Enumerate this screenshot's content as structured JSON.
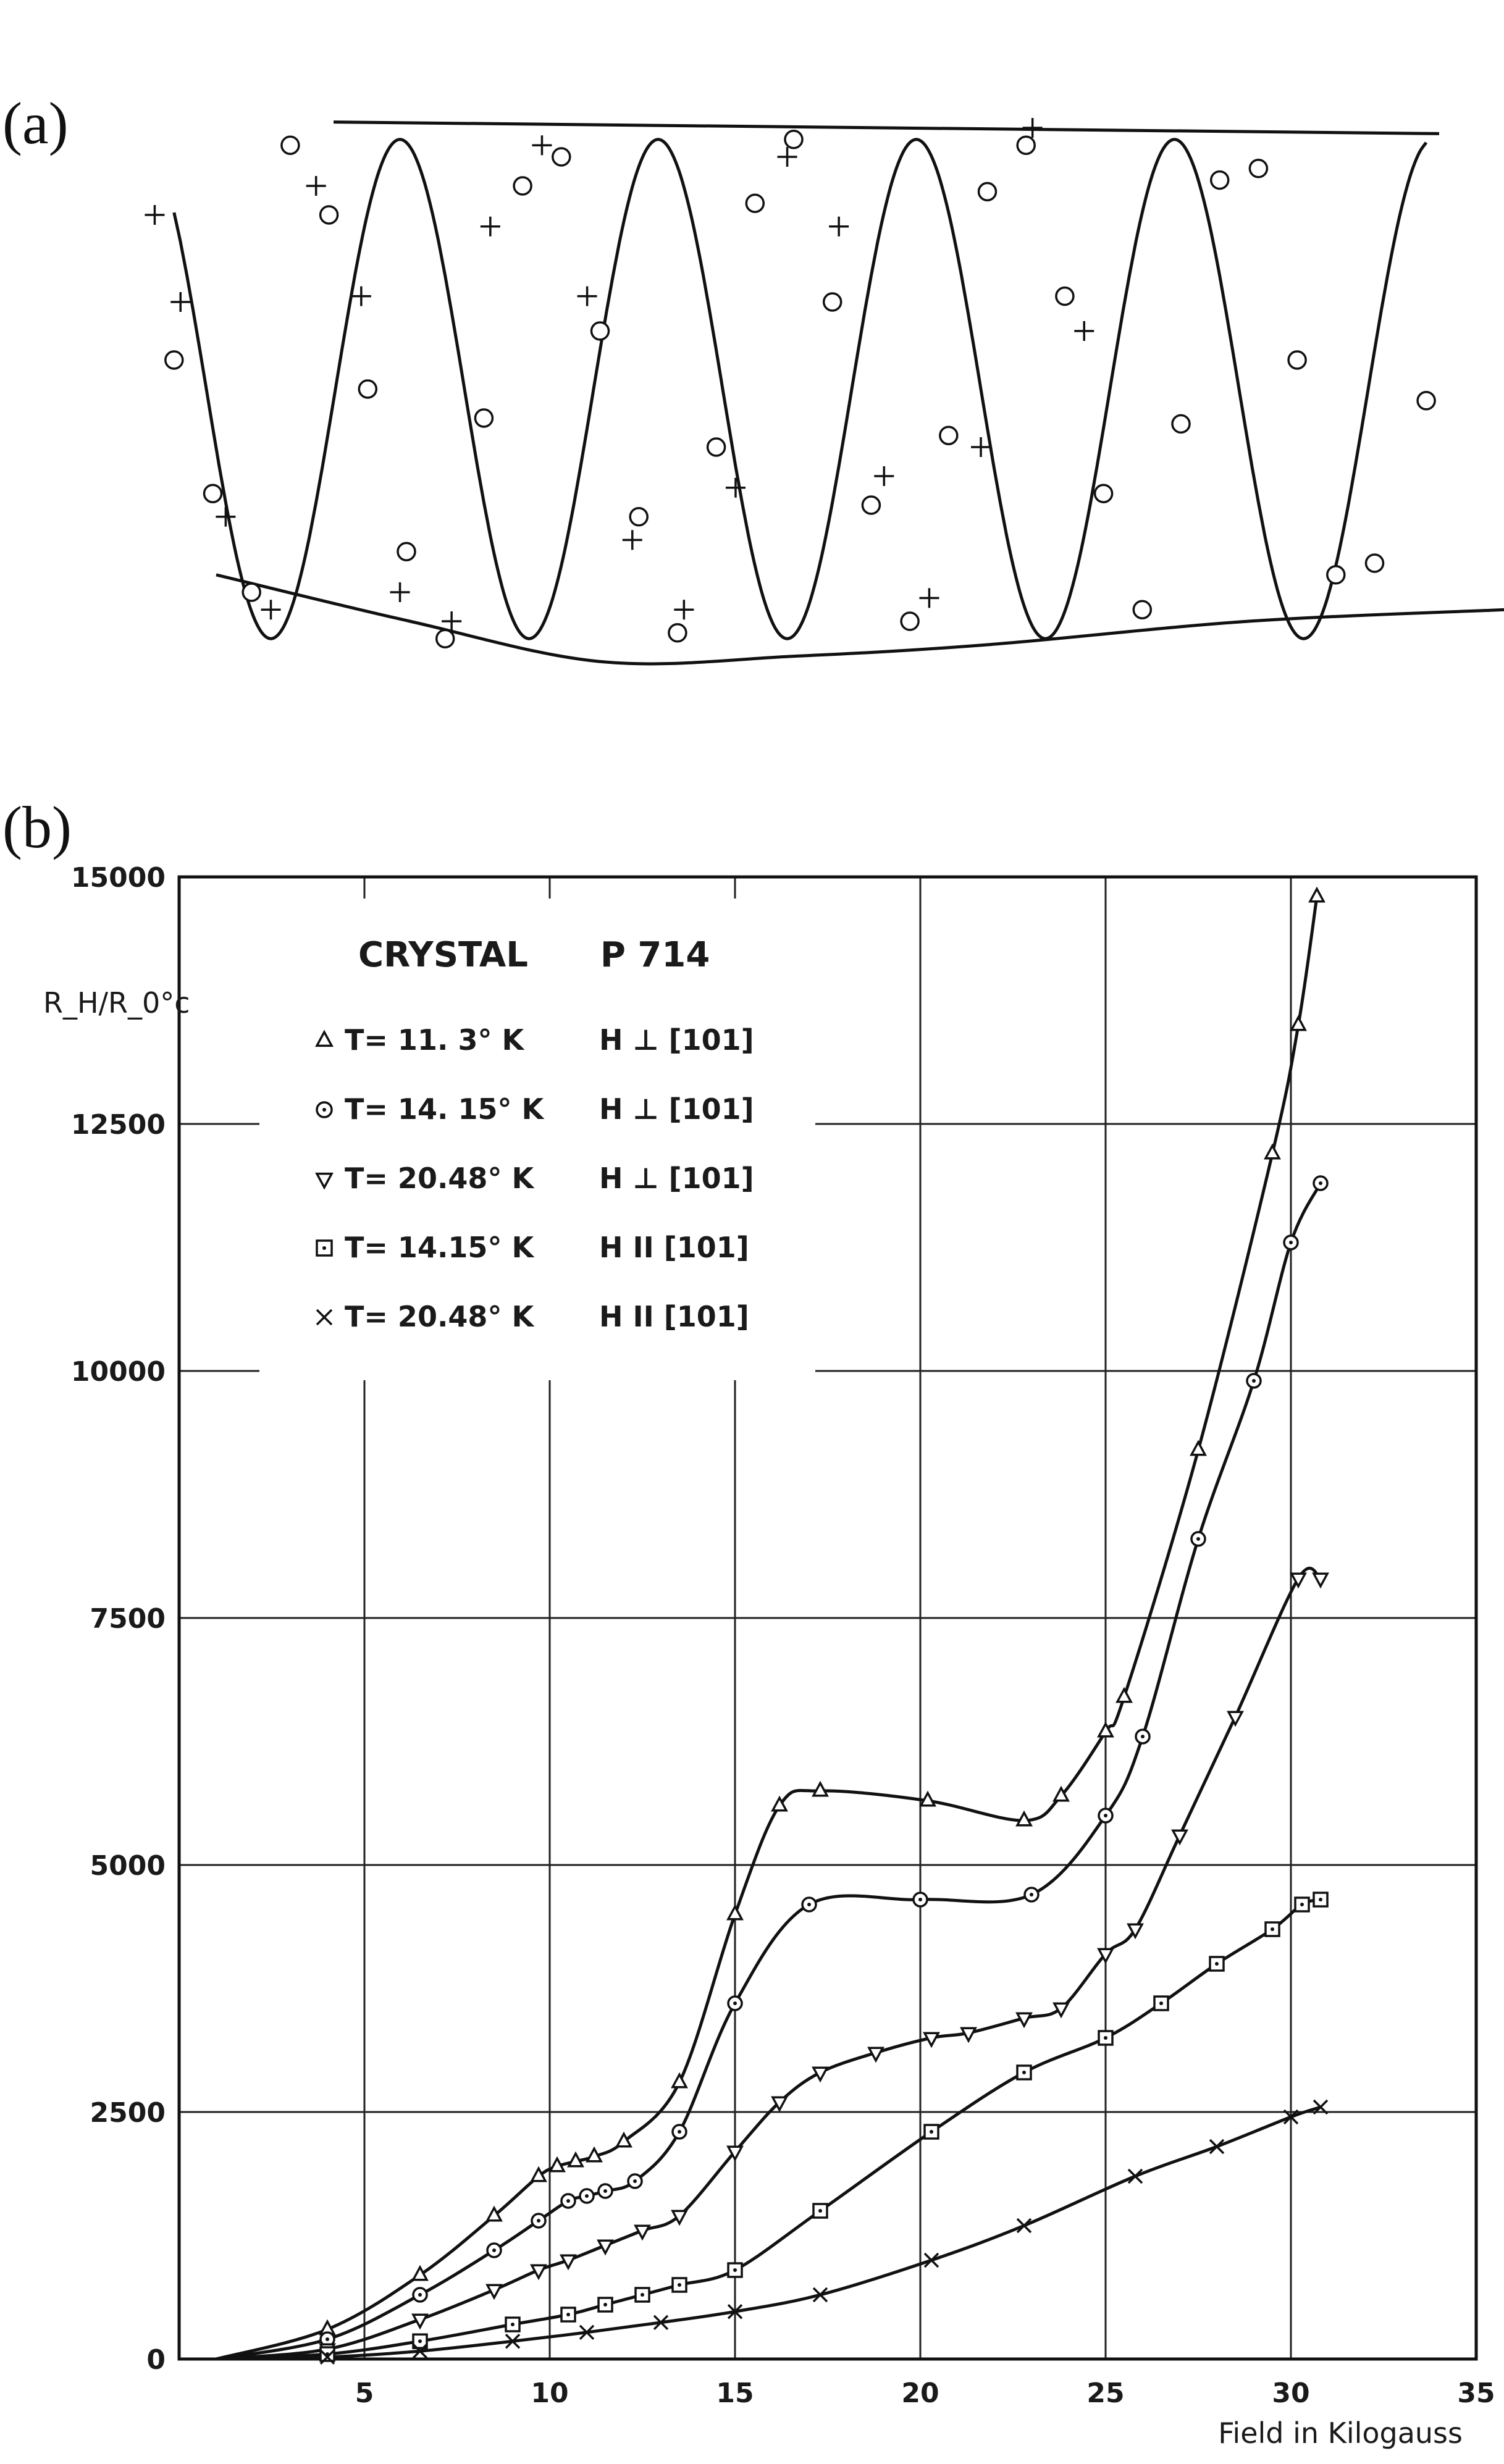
{
  "panel_a": {
    "label": "(a)"
  },
  "panel_b": {
    "label": "(b)"
  },
  "chart_data": [
    {
      "type": "scatter",
      "panel": "(a)",
      "note_axes": "unlabeled",
      "envelope_upper": [
        [
          0,
          0.96
        ],
        [
          10,
          0.94
        ]
      ],
      "series": [
        {
          "marker": "circle",
          "oscillation_period_units": 2.0,
          "points": [
            [
              0.2,
              0.55
            ],
            [
              0.5,
              0.32
            ],
            [
              0.8,
              0.15
            ],
            [
              1.1,
              0.92
            ],
            [
              1.4,
              0.8
            ],
            [
              1.7,
              0.5
            ],
            [
              2.0,
              0.22
            ],
            [
              2.3,
              0.07
            ],
            [
              2.6,
              0.45
            ],
            [
              2.9,
              0.85
            ],
            [
              3.2,
              0.9
            ],
            [
              3.5,
              0.6
            ],
            [
              3.8,
              0.28
            ],
            [
              4.1,
              0.08
            ],
            [
              4.4,
              0.4
            ],
            [
              4.7,
              0.82
            ],
            [
              5.0,
              0.93
            ],
            [
              5.3,
              0.65
            ],
            [
              5.6,
              0.3
            ],
            [
              5.9,
              0.1
            ],
            [
              6.2,
              0.42
            ],
            [
              6.5,
              0.84
            ],
            [
              6.8,
              0.92
            ],
            [
              7.1,
              0.66
            ],
            [
              7.4,
              0.32
            ],
            [
              7.7,
              0.12
            ],
            [
              8.0,
              0.44
            ],
            [
              8.3,
              0.86
            ],
            [
              8.6,
              0.88
            ],
            [
              8.9,
              0.55
            ],
            [
              9.2,
              0.18
            ],
            [
              9.5,
              0.2
            ],
            [
              9.9,
              0.48
            ]
          ]
        },
        {
          "marker": "plus",
          "points": [
            [
              0.05,
              0.8
            ],
            [
              0.25,
              0.65
            ],
            [
              0.6,
              0.28
            ],
            [
              0.95,
              0.12
            ],
            [
              1.3,
              0.85
            ],
            [
              1.65,
              0.66
            ],
            [
              1.95,
              0.15
            ],
            [
              2.35,
              0.1
            ],
            [
              2.65,
              0.78
            ],
            [
              3.05,
              0.92
            ],
            [
              3.4,
              0.66
            ],
            [
              3.75,
              0.24
            ],
            [
              4.15,
              0.12
            ],
            [
              4.55,
              0.33
            ],
            [
              4.95,
              0.9
            ],
            [
              5.35,
              0.78
            ],
            [
              5.7,
              0.35
            ],
            [
              6.05,
              0.14
            ],
            [
              6.45,
              0.4
            ],
            [
              6.85,
              0.95
            ],
            [
              7.25,
              0.6
            ]
          ]
        }
      ]
    },
    {
      "type": "line",
      "panel": "(b)",
      "title": "CRYSTAL P 714",
      "xlabel": "Field in Kilogauss",
      "ylabel": "R_H/R_0°c",
      "xlim": [
        0,
        35
      ],
      "ylim": [
        0,
        15000
      ],
      "xticks": [
        5,
        10,
        15,
        20,
        25,
        30,
        35
      ],
      "yticks": [
        0,
        2500,
        5000,
        7500,
        10000,
        12500,
        15000
      ],
      "grid": true,
      "legend_position": "top-left",
      "legend_title": "CRYSTAL      P 714",
      "series": [
        {
          "name": "T= 11. 3° K",
          "orientation": "H ⊥ [101]",
          "marker": "triangle-up",
          "x": [
            1,
            4,
            6.5,
            8.5,
            9.7,
            10.2,
            10.7,
            11.2,
            12,
            13.5,
            15,
            16.2,
            17.3,
            20.2,
            22.8,
            23.8,
            25,
            25.5,
            27.5,
            29.5,
            30.2,
            30.7
          ],
          "y": [
            0,
            300,
            850,
            1450,
            1850,
            1950,
            2000,
            2050,
            2200,
            2800,
            4500,
            5600,
            5750,
            5650,
            5450,
            5700,
            6350,
            6700,
            9200,
            12200,
            13500,
            14800
          ]
        },
        {
          "name": "T= 14. 15° K",
          "orientation": "H ⊥ [101]",
          "marker": "circle-dot",
          "x": [
            1,
            4,
            6.5,
            8.5,
            9.7,
            10.5,
            11,
            11.5,
            12.3,
            13.5,
            15,
            17,
            20,
            23,
            25,
            26,
            27.5,
            29,
            30,
            30.8
          ],
          "y": [
            0,
            200,
            650,
            1100,
            1400,
            1600,
            1650,
            1700,
            1800,
            2300,
            3600,
            4600,
            4650,
            4700,
            5500,
            6300,
            8300,
            9900,
            11300,
            11900
          ]
        },
        {
          "name": "T= 20.48° K",
          "orientation": "H ⊥ [101]",
          "marker": "triangle-down",
          "x": [
            1,
            4,
            6.5,
            8.5,
            9.7,
            10.5,
            11.5,
            12.5,
            13.5,
            15,
            16.2,
            17.3,
            18.8,
            20.3,
            21.3,
            22.8,
            23.8,
            25,
            25.8,
            27,
            28.5,
            30.2,
            30.8
          ],
          "y": [
            0,
            100,
            400,
            700,
            900,
            1000,
            1150,
            1300,
            1450,
            2100,
            2600,
            2900,
            3100,
            3250,
            3300,
            3450,
            3550,
            4100,
            4350,
            5300,
            6500,
            7900,
            7900
          ]
        },
        {
          "name": "T= 14.15° K",
          "orientation": "H II [101]",
          "marker": "square-dot",
          "x": [
            1,
            4,
            6.5,
            9,
            10.5,
            11.5,
            12.5,
            13.5,
            15,
            17.3,
            20.3,
            22.8,
            25,
            26.5,
            28,
            29.5,
            30.3,
            30.8
          ],
          "y": [
            0,
            50,
            180,
            350,
            450,
            550,
            650,
            750,
            900,
            1500,
            2300,
            2900,
            3250,
            3600,
            4000,
            4350,
            4600,
            4650
          ]
        },
        {
          "name": "T= 20.48° K",
          "orientation": "H II [101]",
          "marker": "x",
          "x": [
            1,
            4,
            6.5,
            9,
            11,
            13,
            15,
            17.3,
            20.3,
            22.8,
            25.8,
            28,
            30,
            30.8
          ],
          "y": [
            0,
            20,
            80,
            180,
            270,
            370,
            480,
            650,
            1000,
            1350,
            1850,
            2150,
            2450,
            2550
          ]
        }
      ]
    }
  ]
}
